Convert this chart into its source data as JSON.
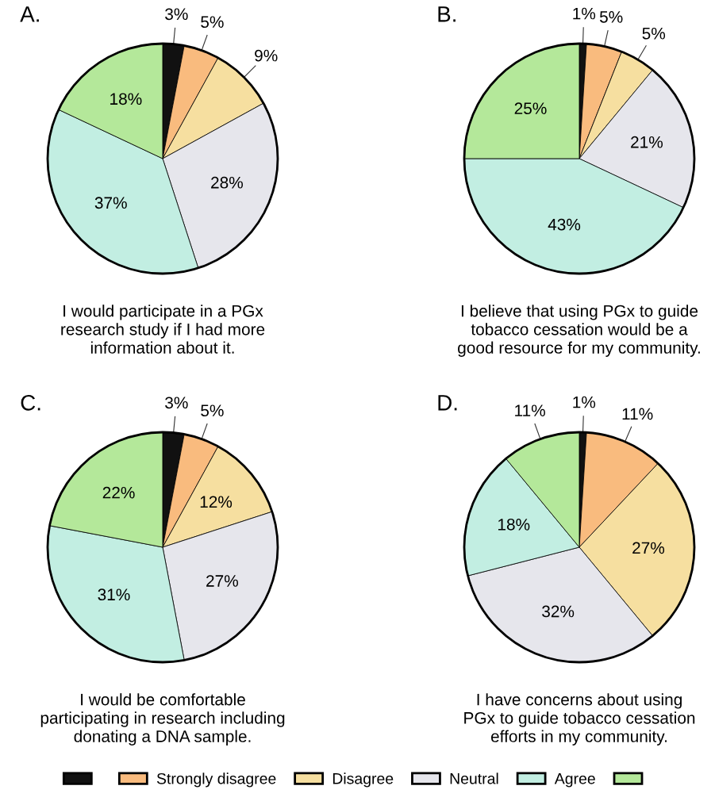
{
  "chart_data": [
    {
      "type": "pie",
      "title": "A.",
      "categories": [
        null,
        "Strongly disagree",
        "Disagree",
        "Neutral",
        "Agree",
        null
      ],
      "colors": [
        "#111111",
        "#f9bb7e",
        "#f6dfa0",
        "#e6e6ec",
        "#c2eee2",
        "#b4e89a"
      ],
      "values": [
        3,
        5,
        9,
        28,
        37,
        18
      ],
      "value_labels": [
        "3%",
        "5%",
        "9%",
        "28%",
        "37%",
        "18%"
      ],
      "annotations": [
        "I would participate in a PGx\nresearch study if I had more\ninformation about it."
      ],
      "legend": "bottom"
    },
    {
      "type": "pie",
      "title": "B.",
      "categories": [
        null,
        null,
        null,
        null,
        null,
        null
      ],
      "colors": [
        "#111111",
        "#f9bb7e",
        "#f6dfa0",
        "#e6e6ec",
        "#c2eee2",
        "#b4e89a"
      ],
      "values": [
        1,
        5,
        5,
        21,
        43,
        25
      ],
      "value_labels": [
        "1%",
        "5%",
        "5%",
        "21%",
        "43%",
        "25%"
      ],
      "annotations": [
        "I believe that using PGx to guide\ntobacco cessation would be a\ngood resource for my community."
      ]
    },
    {
      "type": "pie",
      "title": "C.",
      "categories": [
        null,
        null,
        null,
        null,
        null,
        null
      ],
      "colors": [
        "#111111",
        "#f9bb7e",
        "#f6dfa0",
        "#e6e6ec",
        "#c2eee2",
        "#b4e89a"
      ],
      "values": [
        3,
        5,
        12,
        27,
        31,
        22
      ],
      "value_labels": [
        "3%",
        "5%",
        "12%",
        "27%",
        "31%",
        "22%"
      ],
      "annotations": [
        "I would be comfortable\nparticipating in research including\ndonating a DNA sample."
      ]
    },
    {
      "type": "pie",
      "title": "D.",
      "categories": [
        null,
        null,
        null,
        null,
        null,
        null
      ],
      "colors": [
        "#111111",
        "#f9bb7e",
        "#f6dfa0",
        "#e6e6ec",
        "#c2eee2",
        "#b4e89a"
      ],
      "values": [
        1,
        11,
        27,
        32,
        18,
        11
      ],
      "value_labels": [
        "1%",
        "11%",
        "27%",
        "32%",
        "18%",
        "11%"
      ],
      "annotations": [
        "I have concerns about using\nPGx to guide tobacco cessation\nefforts in my community."
      ]
    }
  ]
}
